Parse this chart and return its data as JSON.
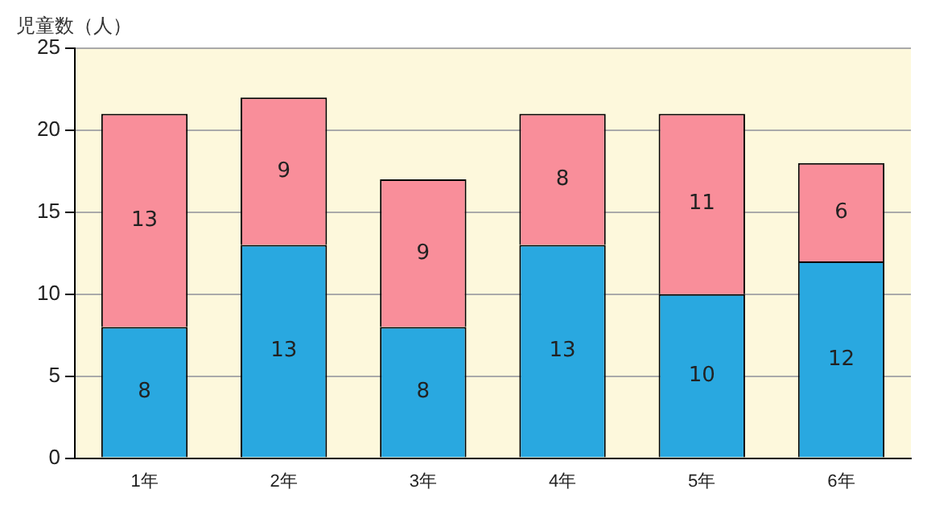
{
  "chart_data": {
    "type": "bar",
    "ylabel": "児童数（人）",
    "categories": [
      "1年",
      "2年",
      "3年",
      "4年",
      "5年",
      "6年"
    ],
    "stacked": true,
    "series": [
      {
        "color": "#29a8e0",
        "values": [
          8,
          13,
          8,
          13,
          10,
          12
        ]
      },
      {
        "color": "#f98e9a",
        "values": [
          13,
          9,
          9,
          8,
          11,
          6
        ]
      }
    ],
    "ylim": [
      0,
      25
    ],
    "yticks": [
      0,
      5,
      10,
      15,
      20,
      25
    ],
    "grid": "y",
    "data_labels": true,
    "legend": false
  }
}
